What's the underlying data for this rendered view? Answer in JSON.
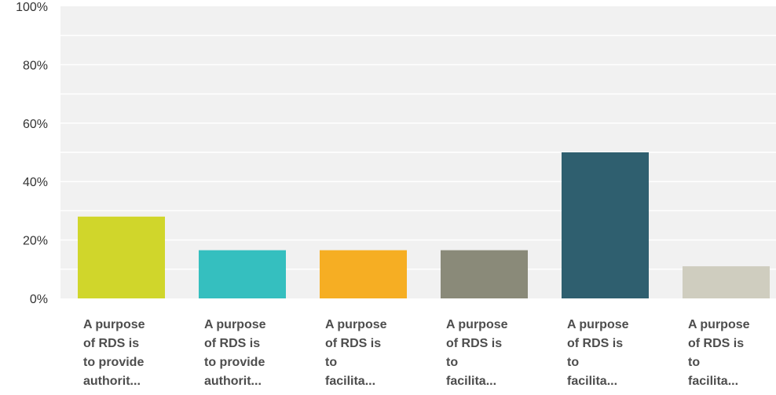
{
  "chart_data": {
    "type": "bar",
    "title": "",
    "xlabel": "",
    "ylabel": "",
    "ylim": [
      0,
      100
    ],
    "y_ticks": [
      "0%",
      "20%",
      "40%",
      "60%",
      "80%",
      "100%"
    ],
    "grid": true,
    "categories": [
      [
        "A purpose",
        "of RDS is",
        "to provide",
        "authorit..."
      ],
      [
        "A purpose",
        "of RDS is",
        "to provide",
        "authorit..."
      ],
      [
        "A purpose",
        "of RDS is",
        "to",
        "facilita..."
      ],
      [
        "A purpose",
        "of RDS is",
        "to",
        "facilita..."
      ],
      [
        "A purpose",
        "of RDS is",
        "to",
        "facilita..."
      ],
      [
        "A purpose",
        "of RDS is",
        "to",
        "facilita..."
      ]
    ],
    "values": [
      28,
      16.5,
      16.5,
      16.5,
      50,
      11
    ],
    "colors": [
      "#d0d62b",
      "#35bfbf",
      "#f6ae23",
      "#8a8a79",
      "#2f5f6f",
      "#cfcdbf"
    ],
    "plot_background": "#f1f1f1",
    "grid_color": "#ffffff"
  }
}
